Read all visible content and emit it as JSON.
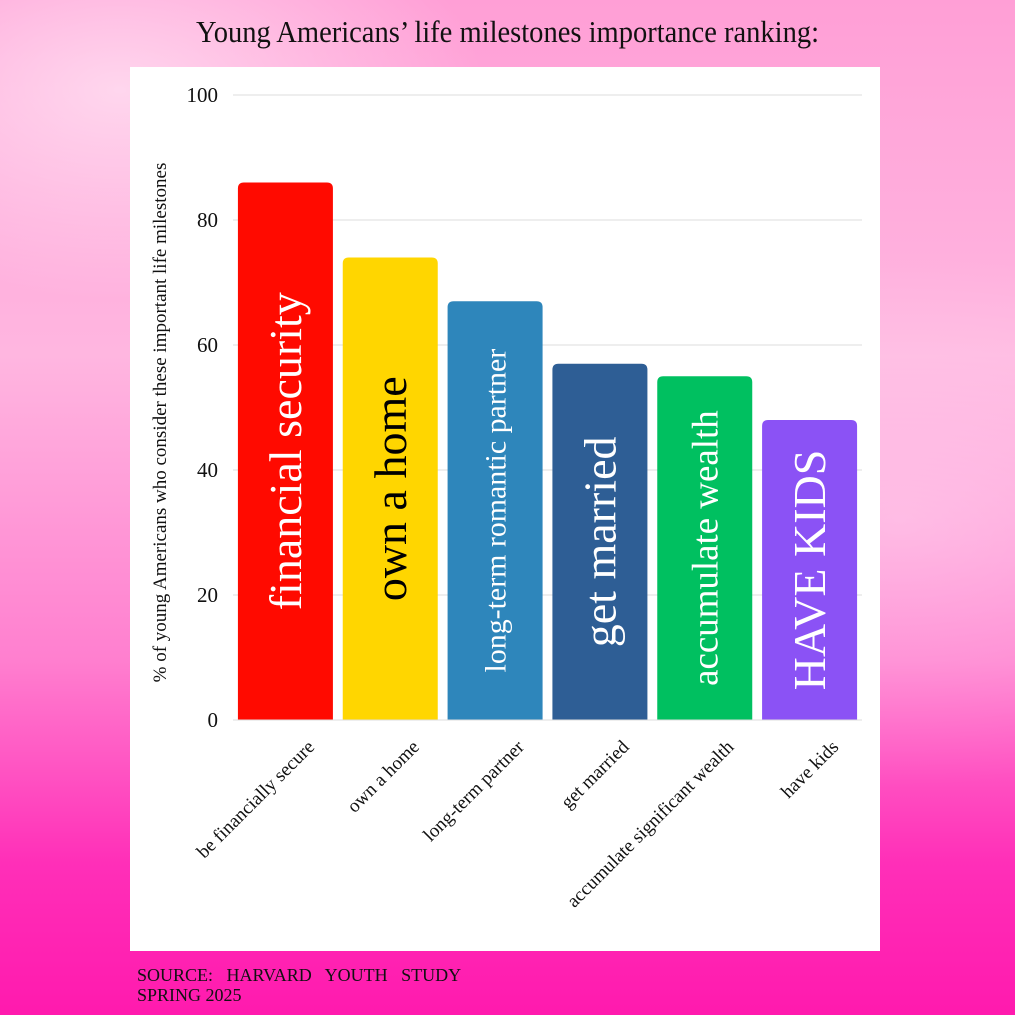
{
  "title": "Young Americans’ life milestones importance ranking:",
  "source": {
    "line1": "SOURCE:   HARVARD   YOUTH   STUDY",
    "line2": "SPRING 2025"
  },
  "chart_data": {
    "type": "bar",
    "ylabel": "% of  young Americans who consider these important life milestones",
    "xlabel": "",
    "ylim": [
      0,
      100
    ],
    "yticks": [
      0,
      20,
      40,
      60,
      80,
      100
    ],
    "grid": true,
    "categories": [
      "be financially secure",
      "own a home",
      "long-term partner",
      "get married",
      "accumulate significant wealth",
      "have kids"
    ],
    "values": [
      86,
      74,
      67,
      57,
      55,
      48
    ],
    "bar_labels": [
      "financial security",
      "own a home",
      "long-term romantic partner",
      "get married",
      "accumulate wealth",
      "HAVE KIDS"
    ],
    "colors": [
      "#ff0a00",
      "#ffd600",
      "#2e86bb",
      "#2e5e95",
      "#00c060",
      "#8b52f5"
    ],
    "label_colors": [
      "#ffffff",
      "#000000",
      "#ffffff",
      "#ffffff",
      "#ffffff",
      "#ffffff"
    ]
  }
}
